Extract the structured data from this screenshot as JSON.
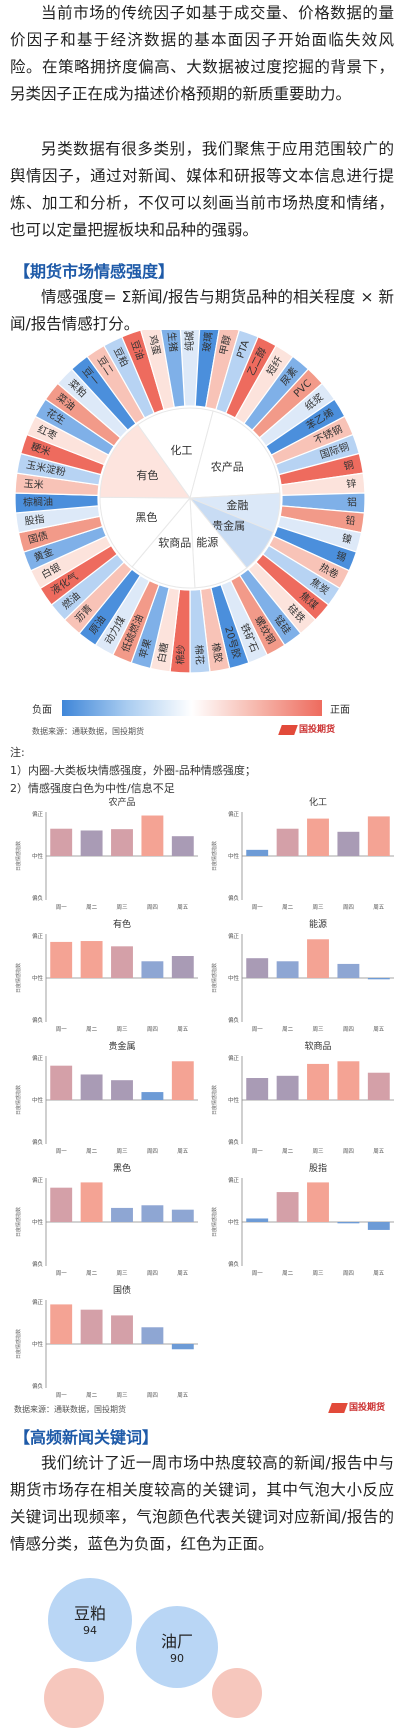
{
  "intro": {
    "p1": "当前市场的传统因子如基于成交量、价格数据的量价因子和基于经济数据的基本面因子开始面临失效风险。在策略拥挤度偏高、大数据被过度挖掘的背景下，另类因子正在成为描述价格预期的新质重要助力。",
    "p2": "另类数据有很多类别，我们聚焦于应用范围较广的舆情因子，通过对新闻、媒体和研报等文本信息进行提炼、加工和分析，不仅可以刻画当前市场热度和情绪，也可以定量把握板块和品种的强弱。"
  },
  "section1": {
    "title": "【期货市场情感强度】",
    "formula": "情感强度= Σ新闻/报告与期货品种的相关程度 × 新闻/报告情感打分。"
  },
  "sunburst": {
    "inner": [
      "化工",
      "农产品",
      "金融",
      "贵金属",
      "能源",
      "软商品",
      "黑色",
      "有色"
    ],
    "outer_labels": [
      "纯碱",
      "玻璃",
      "甲醇",
      "PTA",
      "乙二醇",
      "短纤",
      "尿素",
      "PVC",
      "纸浆",
      "苯乙烯",
      "不锈钢",
      "国际铜",
      "铜",
      "锌",
      "铝",
      "铅",
      "镍",
      "锡",
      "热卷",
      "焦炭",
      "焦煤",
      "硅铁",
      "锰硅",
      "螺纹钢",
      "铁矿石",
      "20号胶",
      "橡胶",
      "棉花",
      "棉纱",
      "白糖",
      "苹果",
      "低硫燃油",
      "动力煤",
      "原油",
      "沥青",
      "燃油",
      "液化气",
      "白银",
      "黄金",
      "国债",
      "股指",
      "棕榈油",
      "玉米",
      "玉米淀粉",
      "粳米",
      "红枣",
      "花生",
      "菜油",
      "菜粕",
      "豆一",
      "豆二",
      "豆粕",
      "豆油",
      "鸡蛋",
      "生猪"
    ],
    "scale_negative": "负面",
    "scale_positive": "正面",
    "colors": {
      "negative": "#3f86d8",
      "neutral": "#ffffff",
      "positive": "#ee6b5e"
    }
  },
  "source1": "数据来源：通联数据，国投期货",
  "brand": "国投期货",
  "notes": {
    "head": "注:",
    "n1": "1）内圈-大类板块情感强度，外圈-品种情感强度；",
    "n2": "2）情感强度白色为中性/信息不足"
  },
  "chart_data": [
    {
      "type": "bar",
      "title": "农产品",
      "categories": [
        "周一",
        "周二",
        "周三",
        "周四",
        "周五"
      ],
      "values": [
        0.62,
        0.58,
        0.61,
        0.92,
        0.45
      ],
      "ylim": [
        -1,
        1
      ],
      "ylabel": "日度情感指数",
      "yticks": [
        "偏正",
        "中性",
        "偏负"
      ]
    },
    {
      "type": "bar",
      "title": "化工",
      "categories": [
        "周一",
        "周二",
        "周三",
        "周四",
        "周五"
      ],
      "values": [
        0.14,
        0.62,
        0.85,
        0.55,
        0.9
      ],
      "ylim": [
        -1,
        1
      ],
      "ylabel": "日度情感指数",
      "yticks": [
        "偏正",
        "中性",
        "偏负"
      ]
    },
    {
      "type": "bar",
      "title": "有色",
      "categories": [
        "周一",
        "周二",
        "周三",
        "周四",
        "周五"
      ],
      "values": [
        0.82,
        0.84,
        0.72,
        0.38,
        0.5
      ],
      "ylim": [
        -1,
        1
      ],
      "ylabel": "日度情感指数",
      "yticks": [
        "偏正",
        "中性",
        "偏负"
      ]
    },
    {
      "type": "bar",
      "title": "能源",
      "categories": [
        "周一",
        "周二",
        "周三",
        "周四",
        "周五"
      ],
      "values": [
        0.45,
        0.38,
        0.88,
        0.32,
        -0.03
      ],
      "ylim": [
        -1,
        1
      ],
      "ylabel": "日度情感指数",
      "yticks": [
        "偏正",
        "中性",
        "偏负"
      ]
    },
    {
      "type": "bar",
      "title": "贵金属",
      "categories": [
        "周一",
        "周二",
        "周三",
        "周四",
        "周五"
      ],
      "values": [
        0.78,
        0.58,
        0.45,
        0.18,
        0.88
      ],
      "ylim": [
        -1,
        1
      ],
      "ylabel": "日度情感指数",
      "yticks": [
        "偏正",
        "中性",
        "偏负"
      ]
    },
    {
      "type": "bar",
      "title": "软商品",
      "categories": [
        "周一",
        "周二",
        "周三",
        "周四",
        "周五"
      ],
      "values": [
        0.5,
        0.55,
        0.82,
        0.88,
        0.62
      ],
      "ylim": [
        -1,
        1
      ],
      "ylabel": "日度情感指数",
      "yticks": [
        "偏正",
        "中性",
        "偏负"
      ]
    },
    {
      "type": "bar",
      "title": "黑色",
      "categories": [
        "周一",
        "周二",
        "周三",
        "周四",
        "周五"
      ],
      "values": [
        0.78,
        0.9,
        0.32,
        0.38,
        0.28
      ],
      "ylim": [
        -1,
        1
      ],
      "ylabel": "日度情感指数",
      "yticks": [
        "偏正",
        "中性",
        "偏负"
      ]
    },
    {
      "type": "bar",
      "title": "股指",
      "categories": [
        "周一",
        "周二",
        "周三",
        "周四",
        "周五"
      ],
      "values": [
        0.08,
        0.68,
        0.9,
        -0.03,
        -0.18
      ],
      "ylim": [
        -1,
        1
      ],
      "ylabel": "日度情感指数",
      "yticks": [
        "偏正",
        "中性",
        "偏负"
      ]
    },
    {
      "type": "bar",
      "title": "国债",
      "categories": [
        "周一",
        "周二",
        "周三",
        "周四",
        "周五"
      ],
      "values": [
        0.9,
        0.78,
        0.65,
        0.38,
        -0.12
      ],
      "ylim": [
        -1,
        1
      ],
      "ylabel": "日度情感指数",
      "yticks": [
        "偏正",
        "中性",
        "偏负"
      ]
    }
  ],
  "source2": "数据来源：通联数据，国投期货",
  "section2": {
    "title": "【高频新闻关键词】",
    "p": "我们统计了近一周市场中热度较高的新闻/报告中与期货市场存在相关度较高的关键词，其中气泡大小反应关键词出现频率，气泡颜色代表关键词对应新闻/报告的情感分类，蓝色为负面，红色为正面。"
  },
  "bubbles": [
    {
      "word": "豆粕",
      "count": "94",
      "color": "#b9d6f5"
    },
    {
      "word": "油厂",
      "count": "90",
      "color": "#b9d6f5"
    }
  ]
}
